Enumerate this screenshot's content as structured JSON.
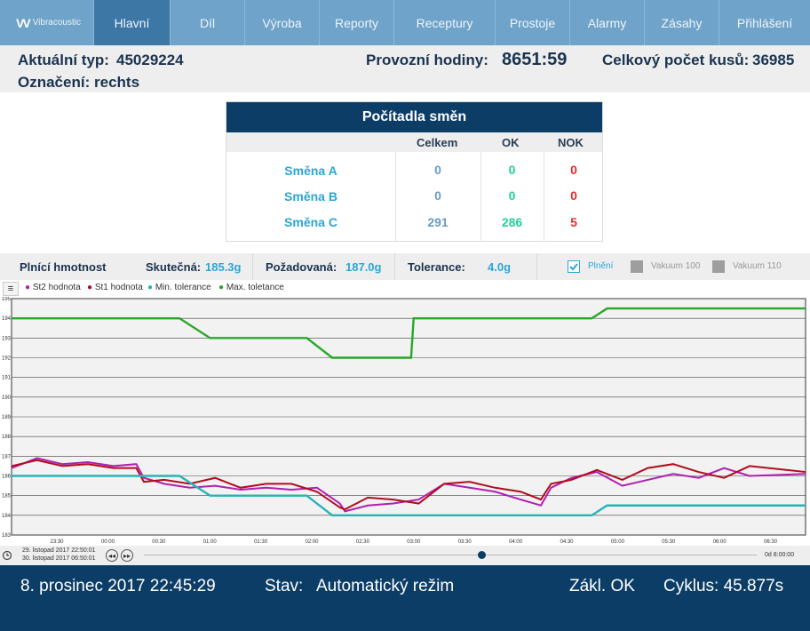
{
  "nav": {
    "logo_text": "Vibracoustic",
    "items": [
      "Hlavní",
      "Díl",
      "Výroba",
      "Reporty",
      "Receptury",
      "Prostoje",
      "Alarmy",
      "Zásahy",
      "Přihlášení"
    ]
  },
  "info": {
    "current_type_label": "Aktuální typ:",
    "current_type_value": "45029224",
    "designation_label": "Označení:",
    "designation_value": "rechts",
    "hours_label": "Provozní hodiny:",
    "hours_value": "8651:59",
    "total_label": "Celkový počet kusů:",
    "total_value": "36985"
  },
  "counters": {
    "title": "Počítadla směn",
    "headers": [
      "Celkem",
      "OK",
      "NOK"
    ],
    "rows": [
      {
        "shift": "Směna A",
        "total": "0",
        "ok": "0",
        "nok": "0"
      },
      {
        "shift": "Směna B",
        "total": "0",
        "ok": "0",
        "nok": "0"
      },
      {
        "shift": "Směna C",
        "total": "291",
        "ok": "286",
        "nok": "5"
      }
    ]
  },
  "fill": {
    "title": "Plnící hmotnost",
    "actual_label": "Skutečná:",
    "actual_value": "185.3g",
    "required_label": "Požadovaná:",
    "required_value": "187.0g",
    "tolerance_label": "Tolerance:",
    "tolerance_value": "4.0g",
    "checkboxes": [
      {
        "label": "Plnění",
        "checked": true
      },
      {
        "label": "Vakuum 100",
        "checked": false
      },
      {
        "label": "Vakuum 110",
        "checked": false
      }
    ]
  },
  "chart_data": {
    "type": "line",
    "ylim": [
      183,
      195
    ],
    "y_ticks": [
      "183",
      "184",
      "185",
      "186",
      "187",
      "188",
      "189",
      "190",
      "191",
      "192",
      "193",
      "194",
      "195"
    ],
    "x_ticks": [
      "23:30",
      "00:00",
      "00:30",
      "01:00",
      "01:30",
      "02:00",
      "02:30",
      "03:00",
      "03:30",
      "04:00",
      "04:30",
      "05:00",
      "05:30",
      "06:00",
      "06:30"
    ],
    "series": [
      {
        "name": "St2 hodnota",
        "color": "#b01fb0",
        "x": [
          0,
          0.5,
          1,
          1.5,
          2,
          2.45,
          2.6,
          3,
          3.5,
          4,
          4.5,
          5,
          5.5,
          6,
          6.45,
          6.55,
          7,
          7.5,
          8,
          8.5,
          9,
          9.5,
          10,
          10.4,
          10.6,
          11,
          11.5,
          12,
          12.5,
          13,
          13.5,
          14,
          14.5,
          15.6
        ],
        "values": [
          186.4,
          186.9,
          186.6,
          186.7,
          186.5,
          186.6,
          185.9,
          185.6,
          185.4,
          185.5,
          185.3,
          185.4,
          185.3,
          185.4,
          184.6,
          184.2,
          184.5,
          184.6,
          184.8,
          185.6,
          185.4,
          185.2,
          184.8,
          184.5,
          185.4,
          185.9,
          186.2,
          185.5,
          185.8,
          186.1,
          185.9,
          186.4,
          186.0,
          186.1
        ]
      },
      {
        "name": "St1 hodnota",
        "color": "#b00c1e",
        "x": [
          0,
          0.5,
          1,
          1.5,
          2,
          2.45,
          2.6,
          3,
          3.5,
          4,
          4.5,
          5,
          5.5,
          6,
          6.45,
          6.55,
          7,
          7.5,
          8,
          8.5,
          9,
          9.5,
          10,
          10.4,
          10.6,
          11,
          11.5,
          12,
          12.5,
          13,
          13.5,
          14,
          14.5,
          15.6
        ],
        "values": [
          186.5,
          186.8,
          186.5,
          186.6,
          186.4,
          186.4,
          185.7,
          185.8,
          185.6,
          185.9,
          185.4,
          185.6,
          185.6,
          185.2,
          184.4,
          184.3,
          184.9,
          184.8,
          184.6,
          185.6,
          185.7,
          185.4,
          185.2,
          184.8,
          185.6,
          185.8,
          186.3,
          185.8,
          186.4,
          186.6,
          186.2,
          185.9,
          186.5,
          186.2
        ]
      },
      {
        "name": "Min. tolerance",
        "color": "#27b3b6",
        "x": [
          0,
          3.3,
          3.9,
          5.8,
          6.3,
          11.4,
          11.7,
          15.6
        ],
        "values": [
          186,
          186,
          185,
          185,
          184,
          184,
          184.5,
          184.5
        ]
      },
      {
        "name": "Max. toletance",
        "color": "#28a828",
        "x": [
          0,
          3.3,
          3.9,
          5.8,
          6.3,
          7.85,
          7.9,
          11.4,
          11.7,
          15.6
        ],
        "values": [
          194,
          194,
          193,
          193,
          192,
          192,
          194,
          194,
          194.5,
          194.5
        ]
      }
    ]
  },
  "timebar": {
    "start": "29. listopad 2017 22:50:01",
    "end": "30. listopad 2017 06:50:01",
    "duration": "0d 8:00:00",
    "slider_value": 0.55
  },
  "footer": {
    "datetime": "8. prosinec 2017 22:45:29",
    "state_label": "Stav:",
    "state_value": "Automatický režim",
    "base": "Zákl. OK",
    "cycle": "Cyklus: 45.877s"
  }
}
